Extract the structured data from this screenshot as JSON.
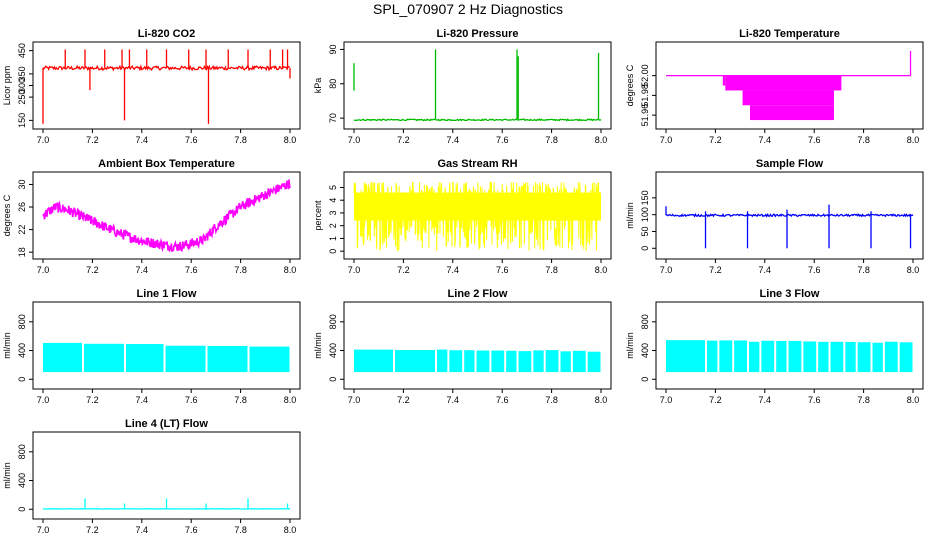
{
  "figure_title": "SPL_070907  2 Hz Diagnostics",
  "chart_data": [
    {
      "type": "line",
      "title": "Li-820 CO2",
      "ylabel": "Licor ppm",
      "xlabel": "",
      "xlim": [
        7.0,
        8.0
      ],
      "ylim": [
        130,
        470
      ],
      "xticks": [
        "7.0",
        "7.2",
        "7.4",
        "7.6",
        "7.8",
        "8.0"
      ],
      "yticks": [
        150,
        250,
        300,
        350,
        450
      ],
      "color": "#ff0000",
      "baseline": 375,
      "noise": 8,
      "start_spike": 135,
      "spikes": [
        {
          "x": 7.09,
          "y": 455
        },
        {
          "x": 7.17,
          "y": 455
        },
        {
          "x": 7.19,
          "y": 280
        },
        {
          "x": 7.25,
          "y": 455
        },
        {
          "x": 7.32,
          "y": 455
        },
        {
          "x": 7.33,
          "y": 150
        },
        {
          "x": 7.35,
          "y": 455
        },
        {
          "x": 7.42,
          "y": 455
        },
        {
          "x": 7.5,
          "y": 455
        },
        {
          "x": 7.59,
          "y": 455
        },
        {
          "x": 7.66,
          "y": 455
        },
        {
          "x": 7.67,
          "y": 135
        },
        {
          "x": 7.75,
          "y": 455
        },
        {
          "x": 7.83,
          "y": 455
        },
        {
          "x": 7.92,
          "y": 455
        },
        {
          "x": 7.97,
          "y": 455
        },
        {
          "x": 7.99,
          "y": 455
        },
        {
          "x": 8.0,
          "y": 330
        }
      ]
    },
    {
      "type": "line",
      "title": "Li-820 Pressure",
      "ylabel": "kPa",
      "xlabel": "",
      "xlim": [
        7.0,
        8.0
      ],
      "ylim": [
        68,
        91
      ],
      "xticks": [
        "7.0",
        "7.2",
        "7.4",
        "7.6",
        "7.8",
        "8.0"
      ],
      "yticks": [
        70,
        80,
        90
      ],
      "color": "#00bb00",
      "baseline": 69.5,
      "noise": 0.2,
      "start_segment": {
        "x": 7.0,
        "y_low": 78,
        "y_high": 86
      },
      "spikes": [
        {
          "x": 7.33,
          "y": 90
        },
        {
          "x": 7.66,
          "y": 90
        },
        {
          "x": 7.665,
          "y": 88
        },
        {
          "x": 7.99,
          "y": 89
        }
      ]
    },
    {
      "type": "line",
      "title": "Li-820 Temperature",
      "ylabel": "degrees C",
      "xlabel": "",
      "xlim": [
        7.0,
        8.0
      ],
      "ylim": [
        51.95,
        52.03
      ],
      "xticks": [
        "7.0",
        "7.2",
        "7.4",
        "7.6",
        "7.8",
        "8.0"
      ],
      "yticks": [
        "51.96",
        "51.98",
        "52.00"
      ],
      "color": "#ff00ff",
      "baseline": 52.0,
      "step_up": {
        "x": 7.99,
        "y": 52.025
      },
      "blocks": [
        {
          "x0": 7.23,
          "x1": 7.24,
          "y0": 51.99,
          "y1": 52.0
        },
        {
          "x0": 7.24,
          "x1": 7.71,
          "y0": 51.985,
          "y1": 52.0
        },
        {
          "x0": 7.31,
          "x1": 7.68,
          "y0": 51.97,
          "y1": 51.985
        },
        {
          "x0": 7.34,
          "x1": 7.68,
          "y0": 51.955,
          "y1": 51.97
        }
      ]
    },
    {
      "type": "line",
      "title": "Ambient Box Temperature",
      "ylabel": "degrees C",
      "xlabel": "",
      "xlim": [
        7.0,
        8.0
      ],
      "ylim": [
        17.5,
        31.5
      ],
      "xticks": [
        "7.0",
        "7.2",
        "7.4",
        "7.6",
        "7.8",
        "8.0"
      ],
      "yticks": [
        18,
        22,
        26,
        30
      ],
      "color": "#ff00ff",
      "noise": 0.9,
      "curve": [
        [
          7.0,
          24.5
        ],
        [
          7.05,
          26.0
        ],
        [
          7.1,
          25.5
        ],
        [
          7.2,
          23.5
        ],
        [
          7.3,
          21.5
        ],
        [
          7.4,
          20.0
        ],
        [
          7.5,
          19.2
        ],
        [
          7.55,
          19.0
        ],
        [
          7.6,
          19.5
        ],
        [
          7.65,
          20.2
        ],
        [
          7.7,
          22.5
        ],
        [
          7.8,
          26.0
        ],
        [
          7.9,
          28.2
        ],
        [
          8.0,
          30.2
        ]
      ]
    },
    {
      "type": "line",
      "title": "Gas Stream RH",
      "ylabel": "percent",
      "xlabel": "",
      "xlim": [
        7.0,
        8.0
      ],
      "ylim": [
        -0.3,
        5.9
      ],
      "xticks": [
        "7.0",
        "7.2",
        "7.4",
        "7.6",
        "7.8",
        "8.0"
      ],
      "yticks": [
        0,
        1,
        2,
        3,
        4,
        5
      ],
      "color": "#ffff00",
      "band": {
        "low": 0.0,
        "high": 5.4,
        "center": 3.5
      }
    },
    {
      "type": "line",
      "title": "Sample Flow",
      "ylabel": "ml/min",
      "xlabel": "",
      "xlim": [
        7.0,
        8.0
      ],
      "ylim": [
        -20,
        215
      ],
      "xticks": [
        "7.0",
        "7.2",
        "7.4",
        "7.6",
        "7.8",
        "8.0"
      ],
      "yticks": [
        0,
        50,
        100,
        150
      ],
      "color": "#0000ff",
      "baseline": 98,
      "noise": 3,
      "start_spike": 125,
      "spikes": [
        {
          "x": 7.16,
          "y": 0,
          "top": 110
        },
        {
          "x": 7.33,
          "y": 0,
          "top": 110
        },
        {
          "x": 7.49,
          "y": 0,
          "top": 115
        },
        {
          "x": 7.66,
          "y": 0,
          "top": 130
        },
        {
          "x": 7.83,
          "y": 0,
          "top": 110
        },
        {
          "x": 7.99,
          "y": 0,
          "top": 100
        }
      ]
    },
    {
      "type": "area",
      "title": "Line 1 Flow",
      "ylabel": "ml/min",
      "xlabel": "",
      "xlim": [
        7.0,
        8.0
      ],
      "ylim": [
        -80,
        1020
      ],
      "xticks": [
        "7.0",
        "7.2",
        "7.4",
        "7.6",
        "7.8",
        "8.0"
      ],
      "yticks": [
        0,
        400,
        800
      ],
      "color": "#00ffff",
      "low": 100,
      "high_start": 500,
      "high_end": 450,
      "gaps": [
        7.16,
        7.33,
        7.49,
        7.66,
        7.83
      ]
    },
    {
      "type": "area",
      "title": "Line 2 Flow",
      "ylabel": "ml/min",
      "xlabel": "",
      "xlim": [
        7.0,
        8.0
      ],
      "ylim": [
        -80,
        1020
      ],
      "xticks": [
        "7.0",
        "7.2",
        "7.4",
        "7.6",
        "7.8",
        "8.0"
      ],
      "yticks": [
        0,
        400,
        800
      ],
      "color": "#00ffff",
      "low": 100,
      "high_start": 420,
      "high_end": 390,
      "gaps": [
        7.16,
        7.33,
        7.38,
        7.44,
        7.49,
        7.55,
        7.61,
        7.66,
        7.72,
        7.77,
        7.83,
        7.88,
        7.94
      ]
    },
    {
      "type": "area",
      "title": "Line 3 Flow",
      "ylabel": "ml/min",
      "xlabel": "",
      "xlim": [
        7.0,
        8.0
      ],
      "ylim": [
        -80,
        1020
      ],
      "xticks": [
        "7.0",
        "7.2",
        "7.4",
        "7.6",
        "7.8",
        "8.0"
      ],
      "yticks": [
        0,
        400,
        800
      ],
      "color": "#00ffff",
      "low": 100,
      "high_start": 540,
      "high_end": 510,
      "gaps": [
        7.16,
        7.21,
        7.27,
        7.33,
        7.38,
        7.44,
        7.49,
        7.55,
        7.61,
        7.66,
        7.72,
        7.77,
        7.83,
        7.88,
        7.94
      ]
    },
    {
      "type": "line",
      "title": "Line 4 (LT) Flow",
      "ylabel": "ml/min",
      "xlabel": "",
      "xlim": [
        7.0,
        8.0
      ],
      "ylim": [
        -80,
        1020
      ],
      "xticks": [
        "7.0",
        "7.2",
        "7.4",
        "7.6",
        "7.8",
        "8.0"
      ],
      "yticks": [
        0,
        400,
        800
      ],
      "color": "#00ffff",
      "baseline": 5,
      "noise": 3,
      "spikes": [
        {
          "x": 7.17,
          "y": 150
        },
        {
          "x": 7.33,
          "y": 80
        },
        {
          "x": 7.5,
          "y": 150
        },
        {
          "x": 7.66,
          "y": 80
        },
        {
          "x": 7.83,
          "y": 150
        },
        {
          "x": 7.99,
          "y": 80
        }
      ]
    }
  ]
}
